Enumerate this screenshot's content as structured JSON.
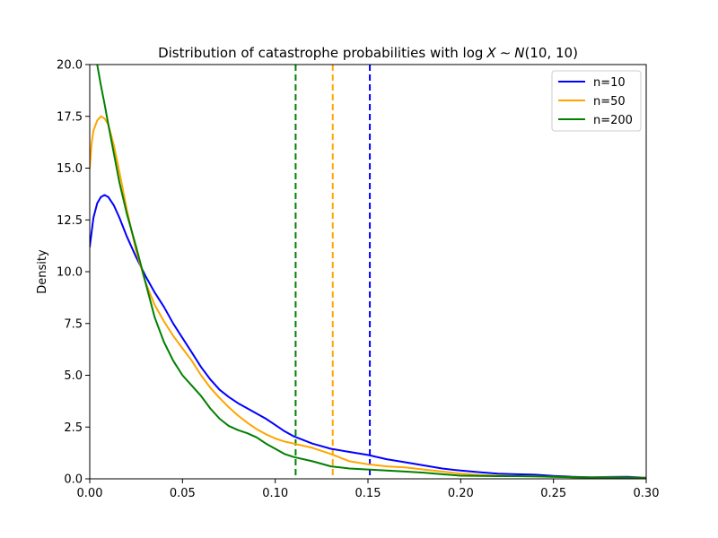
{
  "chart_data": {
    "type": "line",
    "title": "Distribution of catastrophe probabilities with log X ~ N(10, 10)",
    "title_parts": {
      "prefix": "Distribution of catastrophe probabilities with ",
      "log": "log",
      "var": "X",
      "sim": "∼",
      "dist": "N",
      "args": "(10, 10)"
    },
    "xlabel": "",
    "ylabel": "Density",
    "xlim": [
      0,
      0.3
    ],
    "ylim": [
      0,
      20
    ],
    "xticks": [
      0.0,
      0.05,
      0.1,
      0.15,
      0.2,
      0.25,
      0.3
    ],
    "xtick_labels": [
      "0.00",
      "0.05",
      "0.10",
      "0.15",
      "0.20",
      "0.25",
      "0.30"
    ],
    "yticks": [
      0,
      2.5,
      5,
      7.5,
      10,
      12.5,
      15,
      17.5,
      20
    ],
    "ytick_labels": [
      "0.0",
      "2.5",
      "5.0",
      "7.5",
      "10.0",
      "12.5",
      "15.0",
      "17.5",
      "20.0"
    ],
    "grid": false,
    "legend_position": "top-right",
    "series": [
      {
        "name": "n=10",
        "color": "#0000ff",
        "x": [
          0.0,
          0.002,
          0.004,
          0.006,
          0.008,
          0.01,
          0.013,
          0.016,
          0.02,
          0.025,
          0.03,
          0.035,
          0.04,
          0.045,
          0.05,
          0.055,
          0.06,
          0.065,
          0.07,
          0.075,
          0.08,
          0.085,
          0.09,
          0.095,
          0.1,
          0.105,
          0.11,
          0.12,
          0.13,
          0.14,
          0.15,
          0.16,
          0.17,
          0.18,
          0.19,
          0.2,
          0.21,
          0.22,
          0.23,
          0.24,
          0.25,
          0.26,
          0.27,
          0.28,
          0.29,
          0.3
        ],
        "y": [
          11.2,
          12.6,
          13.3,
          13.6,
          13.7,
          13.6,
          13.2,
          12.6,
          11.7,
          10.7,
          9.8,
          9.0,
          8.3,
          7.5,
          6.8,
          6.1,
          5.4,
          4.8,
          4.3,
          3.95,
          3.65,
          3.4,
          3.15,
          2.9,
          2.6,
          2.3,
          2.05,
          1.7,
          1.45,
          1.3,
          1.15,
          0.95,
          0.8,
          0.65,
          0.5,
          0.4,
          0.32,
          0.25,
          0.22,
          0.2,
          0.14,
          0.1,
          0.08,
          0.09,
          0.1,
          0.05
        ]
      },
      {
        "name": "n=50",
        "color": "#ffa500",
        "x": [
          0.0,
          0.001,
          0.002,
          0.004,
          0.006,
          0.008,
          0.01,
          0.013,
          0.016,
          0.02,
          0.025,
          0.03,
          0.035,
          0.04,
          0.045,
          0.05,
          0.055,
          0.06,
          0.065,
          0.07,
          0.075,
          0.08,
          0.085,
          0.09,
          0.095,
          0.1,
          0.105,
          0.11,
          0.12,
          0.13,
          0.14,
          0.15,
          0.16,
          0.17,
          0.18,
          0.19,
          0.2,
          0.21,
          0.22,
          0.23,
          0.24,
          0.25,
          0.26,
          0.27,
          0.28,
          0.29,
          0.3
        ],
        "y": [
          15.0,
          16.2,
          16.8,
          17.3,
          17.5,
          17.4,
          17.1,
          16.1,
          14.8,
          13.0,
          11.0,
          9.5,
          8.4,
          7.6,
          6.9,
          6.3,
          5.7,
          5.0,
          4.4,
          3.9,
          3.45,
          3.05,
          2.7,
          2.4,
          2.15,
          1.95,
          1.8,
          1.7,
          1.5,
          1.2,
          0.85,
          0.7,
          0.6,
          0.55,
          0.45,
          0.35,
          0.25,
          0.18,
          0.15,
          0.13,
          0.12,
          0.1,
          0.08,
          0.07,
          0.07,
          0.06,
          0.05
        ]
      },
      {
        "name": "n=200",
        "color": "#008000",
        "x": [
          0.004,
          0.006,
          0.008,
          0.01,
          0.013,
          0.016,
          0.02,
          0.025,
          0.03,
          0.035,
          0.04,
          0.045,
          0.05,
          0.055,
          0.06,
          0.065,
          0.07,
          0.075,
          0.08,
          0.085,
          0.09,
          0.095,
          0.1,
          0.105,
          0.11,
          0.12,
          0.13,
          0.14,
          0.15,
          0.16,
          0.17,
          0.18,
          0.19,
          0.2,
          0.21,
          0.22,
          0.23,
          0.24,
          0.25,
          0.26,
          0.27,
          0.28,
          0.29,
          0.3
        ],
        "y": [
          20.0,
          19.0,
          18.1,
          17.1,
          15.7,
          14.3,
          12.8,
          11.2,
          9.5,
          7.8,
          6.6,
          5.7,
          5.0,
          4.5,
          4.0,
          3.4,
          2.9,
          2.55,
          2.35,
          2.2,
          2.0,
          1.7,
          1.45,
          1.2,
          1.05,
          0.85,
          0.6,
          0.5,
          0.45,
          0.4,
          0.35,
          0.3,
          0.22,
          0.15,
          0.14,
          0.13,
          0.13,
          0.12,
          0.1,
          0.08,
          0.06,
          0.05,
          0.05,
          0.04
        ]
      }
    ],
    "vlines": [
      {
        "x": 0.111,
        "color": "#008000",
        "style": "dashed"
      },
      {
        "x": 0.131,
        "color": "#ffa500",
        "style": "dashed"
      },
      {
        "x": 0.151,
        "color": "#0000ff",
        "style": "dashed"
      }
    ]
  }
}
